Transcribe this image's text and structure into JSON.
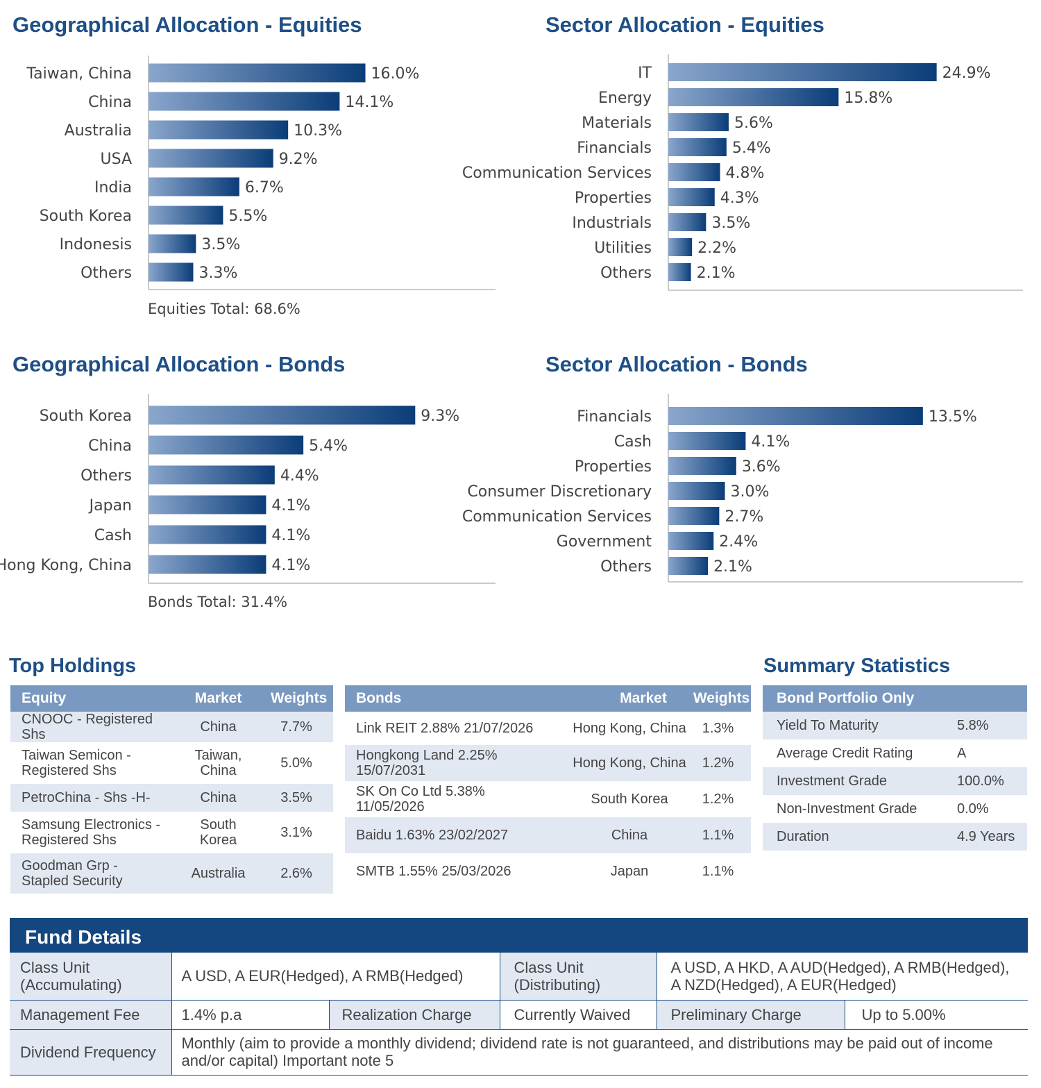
{
  "geo_equities": {
    "title": "Geographical Allocation - Equities",
    "total": "Equities Total: 68.6%"
  },
  "sector_equities": {
    "title": "Sector Allocation - Equities"
  },
  "geo_bonds": {
    "title": "Geographical Allocation - Bonds",
    "total": "Bonds Total: 31.4%"
  },
  "sector_bonds": {
    "title": "Sector Allocation - Bonds"
  },
  "chart_data": [
    {
      "type": "bar",
      "orientation": "horizontal",
      "title": "Geographical Allocation - Equities",
      "categories": [
        "Taiwan, China",
        "China",
        "Australia",
        "USA",
        "India",
        "South Korea",
        "Indonesis",
        "Others"
      ],
      "values": [
        16.0,
        14.1,
        10.3,
        9.2,
        6.7,
        5.5,
        3.5,
        3.3
      ],
      "labels": [
        "16.0%",
        "14.1%",
        "10.3%",
        "9.2%",
        "6.7%",
        "5.5%",
        "3.5%",
        "3.3%"
      ],
      "xlim": [
        0,
        25.6
      ],
      "grid": false
    },
    {
      "type": "bar",
      "orientation": "horizontal",
      "title": "Sector Allocation - Equities",
      "categories": [
        "IT",
        "Energy",
        "Materials",
        "Financials",
        "Communication Services",
        "Properties",
        "Industrials",
        "Utilities",
        "Others"
      ],
      "values": [
        24.9,
        15.8,
        5.6,
        5.4,
        4.8,
        4.3,
        3.5,
        2.2,
        2.1
      ],
      "labels": [
        "24.9%",
        "15.8%",
        "5.6%",
        "5.4%",
        "4.8%",
        "4.3%",
        "3.5%",
        "2.2%",
        "2.1%"
      ],
      "xlim": [
        0,
        32.2
      ],
      "grid": false
    },
    {
      "type": "bar",
      "orientation": "horizontal",
      "title": "Geographical Allocation - Bonds",
      "categories": [
        "South Korea",
        "China",
        "Others",
        "Japan",
        "Cash",
        "Hong Kong, China"
      ],
      "values": [
        9.3,
        5.4,
        4.4,
        4.1,
        4.1,
        4.1
      ],
      "labels": [
        "9.3%",
        "5.4%",
        "4.4%",
        "4.1%",
        "4.1%",
        "4.1%"
      ],
      "xlim": [
        0,
        12.1
      ],
      "grid": false
    },
    {
      "type": "bar",
      "orientation": "horizontal",
      "title": "Sector Allocation - Bonds",
      "categories": [
        "Financials",
        "Cash",
        "Properties",
        "Consumer Discretionary",
        "Communication Services",
        "Government",
        "Others"
      ],
      "values": [
        13.5,
        4.1,
        3.6,
        3.0,
        2.7,
        2.4,
        2.1
      ],
      "labels": [
        "13.5%",
        "4.1%",
        "3.6%",
        "3.0%",
        "2.7%",
        "2.4%",
        "2.1%"
      ],
      "xlim": [
        0,
        18.4
      ],
      "grid": false
    }
  ],
  "top_holdings": {
    "title": "Top Holdings",
    "equity": {
      "headers": [
        "Equity",
        "Market",
        "Weights"
      ],
      "rows": [
        [
          "CNOOC - Registered Shs",
          "China",
          "7.7%"
        ],
        [
          "Taiwan Semicon - Registered Shs",
          "Taiwan, China",
          "5.0%"
        ],
        [
          "PetroChina - Shs -H-",
          "China",
          "3.5%"
        ],
        [
          "Samsung Electronics - Registered Shs",
          "South Korea",
          "3.1%"
        ],
        [
          "Goodman Grp - Stapled Security",
          "Australia",
          "2.6%"
        ]
      ]
    },
    "bonds": {
      "headers": [
        "Bonds",
        "Market",
        "Weights"
      ],
      "rows": [
        [
          "Link REIT 2.88% 21/07/2026",
          "Hong Kong, China",
          "1.3%"
        ],
        [
          "Hongkong Land 2.25% 15/07/2031",
          "Hong Kong, China",
          "1.2%"
        ],
        [
          "SK On Co Ltd 5.38% 11/05/2026",
          "South Korea",
          "1.2%"
        ],
        [
          "Baidu 1.63% 23/02/2027",
          "China",
          "1.1%"
        ],
        [
          "SMTB 1.55% 25/03/2026",
          "Japan",
          "1.1%"
        ]
      ]
    }
  },
  "summary": {
    "title": "Summary Statistics",
    "header": "Bond Portfolio Only",
    "rows": [
      [
        "Yield To Maturity",
        "5.8%"
      ],
      [
        "Average Credit Rating",
        "A"
      ],
      [
        "Investment Grade",
        "100.0%"
      ],
      [
        "Non-Investment Grade",
        "0.0%"
      ],
      [
        "Duration",
        "4.9 Years"
      ]
    ]
  },
  "fund_details": {
    "title": "Fund Details",
    "class_acc_label": "Class Unit (Accumulating)",
    "class_acc_value": "A USD, A EUR(Hedged), A RMB(Hedged)",
    "class_dist_label": "Class Unit (Distributing)",
    "class_dist_value": "A USD, A HKD, A AUD(Hedged), A RMB(Hedged), A NZD(Hedged), A EUR(Hedged)",
    "mgmt_fee_label": "Management Fee",
    "mgmt_fee_value": "1.4% p.a",
    "realization_label": "Realization Charge",
    "realization_value": "Currently Waived",
    "preliminary_label": "Preliminary Charge",
    "preliminary_value": "Up to 5.00%",
    "dividend_label": "Dividend Frequency",
    "dividend_value": "Monthly (aim to provide a monthly dividend; dividend rate is not guaranteed, and distributions may be paid out of income and/or capital) Important note 5"
  },
  "colors": {
    "title_blue": "#1e4f86",
    "bar_dark": "#0b3d78",
    "bar_light": "#8aa6cc",
    "table_header": "#7a99c1",
    "row_shade": "#e2e8f2",
    "fund_header": "#14477f"
  }
}
